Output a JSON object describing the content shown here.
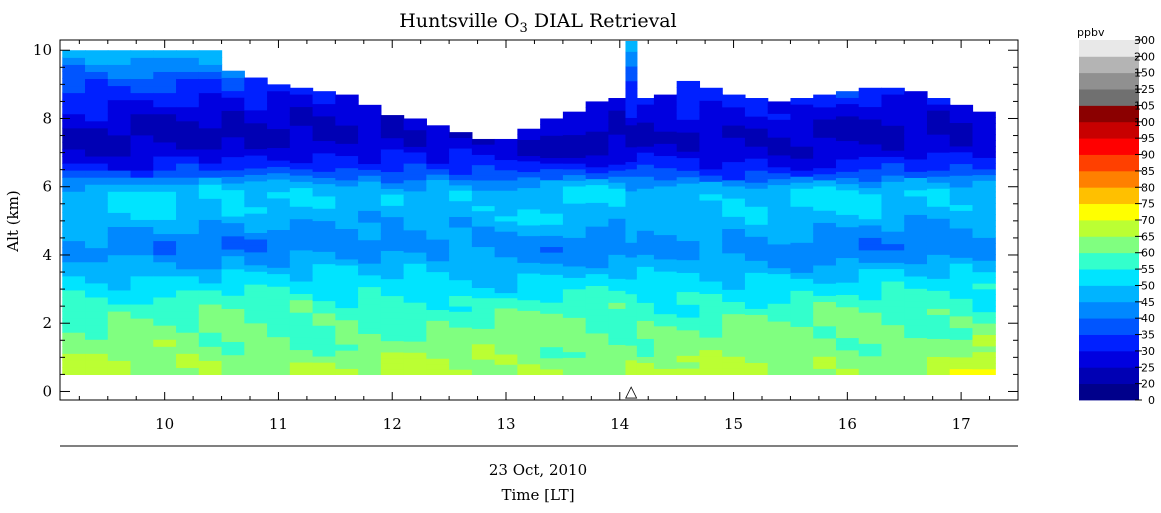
{
  "chart_data": {
    "type": "heatmap",
    "title_main": "Huntsville O",
    "title_sub": "3",
    "title_rest": " DIAL Retrieval",
    "xlabel_line1": "23 Oct, 2010",
    "xlabel_line2": "Time [LT]",
    "ylabel": "Alt (km)",
    "xlim": [
      9.08,
      17.5
    ],
    "ylim": [
      -0.25,
      10.3
    ],
    "x_ticks": [
      "10",
      "11",
      "12",
      "13",
      "14",
      "15",
      "16",
      "17"
    ],
    "y_ticks": [
      "0",
      "2",
      "4",
      "6",
      "8",
      "10"
    ],
    "marker": {
      "symbol": "△",
      "x": 14.1,
      "y": 0.0
    },
    "colorbar": {
      "unit": "ppbv",
      "levels": [
        0,
        20,
        25,
        30,
        35,
        40,
        45,
        50,
        55,
        60,
        65,
        70,
        75,
        80,
        85,
        90,
        95,
        100,
        105,
        125,
        150,
        200,
        300
      ],
      "labels": [
        "0",
        "20",
        "25",
        "30",
        "35",
        "40",
        "45",
        "50",
        "55",
        "60",
        "65",
        "70",
        "75",
        "80",
        "85",
        "90",
        "95",
        "100",
        "105",
        "125",
        "150",
        "200",
        "300"
      ],
      "colors": [
        "#00008b",
        "#0000b4",
        "#0000e0",
        "#0020ff",
        "#0055ff",
        "#0088ff",
        "#00b4ff",
        "#00e4ff",
        "#33ffcc",
        "#80ff80",
        "#bbff33",
        "#ffff00",
        "#ffc000",
        "#ff8000",
        "#ff4000",
        "#ff0000",
        "#c80000",
        "#8b0000",
        "#707070",
        "#909090",
        "#b4b4b4",
        "#e8e8e8"
      ]
    },
    "times": [
      9.2,
      9.4,
      9.6,
      9.8,
      10.0,
      10.2,
      10.4,
      10.6,
      10.8,
      11.0,
      11.2,
      11.4,
      11.6,
      11.8,
      12.0,
      12.2,
      12.4,
      12.6,
      12.8,
      13.0,
      13.2,
      13.4,
      13.6,
      13.8,
      14.0,
      14.1,
      14.2,
      14.4,
      14.6,
      14.8,
      15.0,
      15.2,
      15.4,
      15.6,
      15.8,
      16.0,
      16.2,
      16.4,
      16.6,
      16.8,
      17.0,
      17.2
    ],
    "top_km": [
      10.0,
      10.0,
      10.0,
      10.0,
      10.0,
      10.0,
      10.0,
      9.4,
      9.2,
      9.0,
      8.9,
      8.8,
      8.7,
      8.4,
      8.1,
      8.0,
      7.8,
      7.6,
      7.4,
      7.4,
      7.7,
      8.0,
      8.2,
      8.5,
      8.6,
      10.4,
      8.6,
      8.7,
      9.1,
      8.9,
      8.7,
      8.6,
      8.5,
      8.6,
      8.7,
      8.8,
      8.9,
      8.9,
      8.8,
      8.6,
      8.4,
      8.2
    ],
    "bottom_km": 0.5,
    "ozone_profile": {
      "altitude_km": [
        0.5,
        0.9,
        1.2,
        1.6,
        2.0,
        2.6,
        3.0,
        3.3,
        3.6,
        3.9,
        4.2,
        4.6,
        5.0,
        5.4,
        5.8,
        6.1,
        6.3,
        6.6,
        7.0,
        7.5,
        8.0,
        8.6,
        9.2,
        9.6,
        10.0
      ],
      "ozone_ppbv": [
        66,
        64,
        62,
        61,
        60,
        57,
        53,
        51,
        48,
        45,
        42,
        44,
        47,
        50,
        50,
        45,
        38,
        32,
        27,
        24,
        27,
        31,
        37,
        43,
        47
      ]
    }
  }
}
